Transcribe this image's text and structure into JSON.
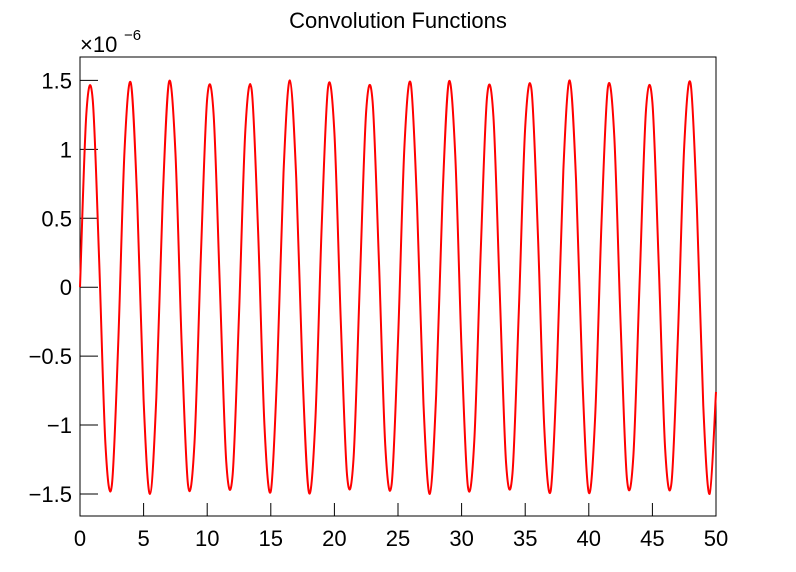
{
  "chart_data": {
    "type": "line",
    "title": "Convolution Functions",
    "y_multiplier": "×10",
    "y_exponent": "−6",
    "xlim": [
      0,
      50
    ],
    "ylim": [
      -1.66,
      1.67
    ],
    "xticks": [
      0,
      5,
      10,
      15,
      20,
      25,
      30,
      35,
      40,
      45,
      50
    ],
    "yticks": [
      {
        "value": -1.5,
        "label": "−1.5"
      },
      {
        "value": -1,
        "label": "−1"
      },
      {
        "value": -0.5,
        "label": "−0.5"
      },
      0,
      0.5,
      1,
      1.5
    ],
    "x": [
      0,
      0.5,
      1,
      1.5,
      2,
      2.5,
      3,
      3.5,
      4,
      4.5,
      5,
      5.5,
      6,
      6.5,
      7,
      7.5,
      8,
      8.5,
      9,
      9.5,
      10,
      10.5,
      11,
      11.5,
      12,
      12.5,
      13,
      13.5,
      14,
      14.5,
      15,
      15.5,
      16,
      16.5,
      17,
      17.5,
      18,
      18.5,
      19,
      19.5,
      20,
      20.5,
      21,
      21.5,
      22,
      22.5,
      23,
      23.5,
      24,
      24.5,
      25,
      25.5,
      26,
      26.5,
      27,
      27.5,
      28,
      28.5,
      29,
      29.5,
      30,
      30.5,
      31,
      31.5,
      32,
      32.5,
      33,
      33.5,
      34,
      34.5,
      35,
      35.5,
      36,
      36.5,
      37,
      37.5,
      38,
      38.5,
      39,
      39.5,
      40,
      40.5,
      41,
      41.5,
      42,
      42.5,
      43,
      43.5,
      44,
      44.5,
      45,
      45.5,
      46,
      46.5,
      47,
      47.5,
      48,
      48.5,
      49,
      49.5,
      50
    ],
    "series": [
      {
        "color": "#ff0000",
        "values": [
          0,
          1.26,
          1.36,
          0.21,
          -1.14,
          -1.44,
          -0.42,
          0.99,
          1.48,
          0.62,
          -0.82,
          -1.5,
          -0.8,
          0.63,
          1.49,
          0.98,
          -0.43,
          -1.44,
          -1.13,
          0.22,
          1.37,
          1.26,
          -0.01,
          -1.27,
          -1.36,
          -0.2,
          1.14,
          1.43,
          0.41,
          -1,
          -1.48,
          -0.61,
          0.83,
          1.5,
          0.79,
          -0.64,
          -1.49,
          -0.97,
          0.44,
          1.45,
          1.12,
          -0.24,
          -1.37,
          -1.25,
          0.03,
          1.28,
          1.35,
          0.19,
          -1.15,
          -1.43,
          -0.39,
          1.01,
          1.48,
          0.59,
          -0.84,
          -1.5,
          -0.78,
          0.65,
          1.49,
          0.96,
          -0.46,
          -1.45,
          -1.11,
          0.25,
          1.38,
          1.24,
          -0.04,
          -1.28,
          -1.35,
          -0.17,
          1.16,
          1.43,
          0.38,
          -1.02,
          -1.48,
          -0.58,
          0.85,
          1.5,
          0.77,
          -0.67,
          -1.49,
          -0.94,
          0.47,
          1.45,
          1.1,
          -0.26,
          -1.39,
          -1.23,
          0.05,
          1.29,
          1.34,
          0.16,
          -1.17,
          -1.42,
          -0.37,
          1.02,
          1.48,
          0.57,
          -0.86,
          -1.5,
          -0.76
        ]
      }
    ]
  }
}
